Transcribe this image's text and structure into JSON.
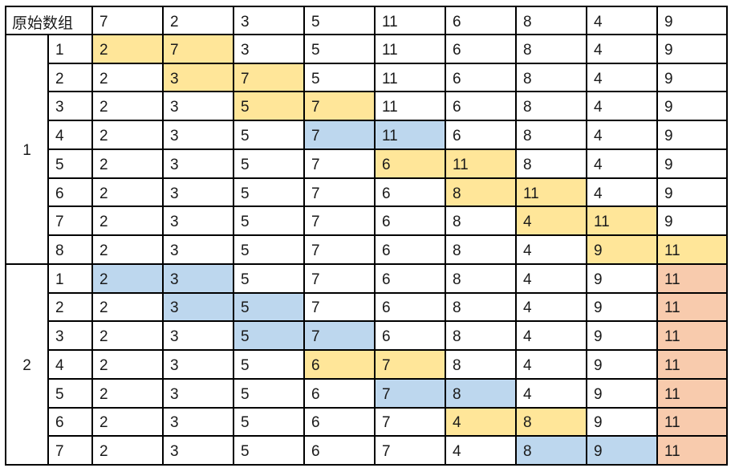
{
  "header": {
    "label": "原始数组",
    "values": [
      "7",
      "2",
      "3",
      "5",
      "11",
      "6",
      "8",
      "4",
      "9"
    ]
  },
  "colors": {
    "yellow": "#FFE699",
    "blue": "#BDD7EE",
    "orange": "#F8CBAD"
  },
  "groups": [
    {
      "label": "1",
      "rows": [
        {
          "index": "1",
          "values": [
            "2",
            "7",
            "3",
            "5",
            "11",
            "6",
            "8",
            "4",
            "9"
          ],
          "hl": [
            "yellow",
            "yellow",
            "",
            "",
            "",
            "",
            "",
            "",
            ""
          ]
        },
        {
          "index": "2",
          "values": [
            "2",
            "3",
            "7",
            "5",
            "11",
            "6",
            "8",
            "4",
            "9"
          ],
          "hl": [
            "",
            "yellow",
            "yellow",
            "",
            "",
            "",
            "",
            "",
            ""
          ]
        },
        {
          "index": "3",
          "values": [
            "2",
            "3",
            "5",
            "7",
            "11",
            "6",
            "8",
            "4",
            "9"
          ],
          "hl": [
            "",
            "",
            "yellow",
            "yellow",
            "",
            "",
            "",
            "",
            ""
          ]
        },
        {
          "index": "4",
          "values": [
            "2",
            "3",
            "5",
            "7",
            "11",
            "6",
            "8",
            "4",
            "9"
          ],
          "hl": [
            "",
            "",
            "",
            "blue",
            "blue",
            "",
            "",
            "",
            ""
          ]
        },
        {
          "index": "5",
          "values": [
            "2",
            "3",
            "5",
            "7",
            "6",
            "11",
            "8",
            "4",
            "9"
          ],
          "hl": [
            "",
            "",
            "",
            "",
            "yellow",
            "yellow",
            "",
            "",
            ""
          ]
        },
        {
          "index": "6",
          "values": [
            "2",
            "3",
            "5",
            "7",
            "6",
            "8",
            "11",
            "4",
            "9"
          ],
          "hl": [
            "",
            "",
            "",
            "",
            "",
            "yellow",
            "yellow",
            "",
            ""
          ]
        },
        {
          "index": "7",
          "values": [
            "2",
            "3",
            "5",
            "7",
            "6",
            "8",
            "4",
            "11",
            "9"
          ],
          "hl": [
            "",
            "",
            "",
            "",
            "",
            "",
            "yellow",
            "yellow",
            ""
          ]
        },
        {
          "index": "8",
          "values": [
            "2",
            "3",
            "5",
            "7",
            "6",
            "8",
            "4",
            "9",
            "11"
          ],
          "hl": [
            "",
            "",
            "",
            "",
            "",
            "",
            "",
            "yellow",
            "yellow"
          ]
        }
      ]
    },
    {
      "label": "2",
      "rows": [
        {
          "index": "1",
          "values": [
            "2",
            "3",
            "5",
            "7",
            "6",
            "8",
            "4",
            "9",
            "11"
          ],
          "hl": [
            "blue",
            "blue",
            "",
            "",
            "",
            "",
            "",
            "",
            "orange"
          ]
        },
        {
          "index": "2",
          "values": [
            "2",
            "3",
            "5",
            "7",
            "6",
            "8",
            "4",
            "9",
            "11"
          ],
          "hl": [
            "",
            "blue",
            "blue",
            "",
            "",
            "",
            "",
            "",
            "orange"
          ]
        },
        {
          "index": "3",
          "values": [
            "2",
            "3",
            "5",
            "7",
            "6",
            "8",
            "4",
            "9",
            "11"
          ],
          "hl": [
            "",
            "",
            "blue",
            "blue",
            "",
            "",
            "",
            "",
            "orange"
          ]
        },
        {
          "index": "4",
          "values": [
            "2",
            "3",
            "5",
            "6",
            "7",
            "8",
            "4",
            "9",
            "11"
          ],
          "hl": [
            "",
            "",
            "",
            "yellow",
            "yellow",
            "",
            "",
            "",
            "orange"
          ]
        },
        {
          "index": "5",
          "values": [
            "2",
            "3",
            "5",
            "6",
            "7",
            "8",
            "4",
            "9",
            "11"
          ],
          "hl": [
            "",
            "",
            "",
            "",
            "blue",
            "blue",
            "",
            "",
            "orange"
          ]
        },
        {
          "index": "6",
          "values": [
            "2",
            "3",
            "5",
            "6",
            "7",
            "4",
            "8",
            "9",
            "11"
          ],
          "hl": [
            "",
            "",
            "",
            "",
            "",
            "yellow",
            "yellow",
            "",
            "orange"
          ]
        },
        {
          "index": "7",
          "values": [
            "2",
            "3",
            "5",
            "6",
            "7",
            "4",
            "8",
            "9",
            "11"
          ],
          "hl": [
            "",
            "",
            "",
            "",
            "",
            "",
            "blue",
            "blue",
            "orange"
          ]
        }
      ]
    }
  ]
}
